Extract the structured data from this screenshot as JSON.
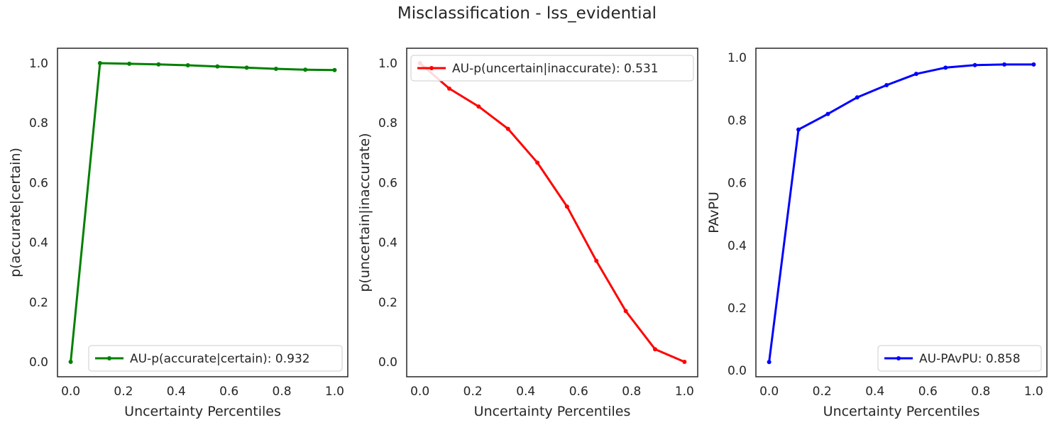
{
  "figure": {
    "title": "Misclassification - lss_evidential"
  },
  "chart_data": [
    {
      "type": "line",
      "title": "",
      "xlabel": "Uncertainty Percentiles",
      "ylabel": "p(accurate|certain)",
      "xlim": [
        -0.05,
        1.05
      ],
      "ylim": [
        -0.05,
        1.05
      ],
      "xticks": [
        0.0,
        0.2,
        0.4,
        0.6,
        0.8,
        1.0
      ],
      "yticks": [
        0.0,
        0.2,
        0.4,
        0.6,
        0.8,
        1.0
      ],
      "grid": false,
      "legend_position": "lower right",
      "series": [
        {
          "name": "AU-p(accurate|certain): 0.932",
          "color": "#008000",
          "x": [
            0.0,
            0.111,
            0.222,
            0.333,
            0.444,
            0.556,
            0.667,
            0.778,
            0.889,
            1.0
          ],
          "y": [
            0.0,
            1.0,
            0.998,
            0.996,
            0.993,
            0.989,
            0.985,
            0.981,
            0.978,
            0.977
          ]
        }
      ]
    },
    {
      "type": "line",
      "title": "",
      "xlabel": "Uncertainty Percentiles",
      "ylabel": "p(uncertain|inaccurate)",
      "xlim": [
        -0.05,
        1.05
      ],
      "ylim": [
        -0.05,
        1.05
      ],
      "xticks": [
        0.0,
        0.2,
        0.4,
        0.6,
        0.8,
        1.0
      ],
      "yticks": [
        0.0,
        0.2,
        0.4,
        0.6,
        0.8,
        1.0
      ],
      "grid": false,
      "legend_position": "upper left",
      "series": [
        {
          "name": "AU-p(uncertain|inaccurate): 0.531",
          "color": "#ff0000",
          "x": [
            0.0,
            0.111,
            0.222,
            0.333,
            0.444,
            0.556,
            0.667,
            0.778,
            0.889,
            1.0
          ],
          "y": [
            1.0,
            0.915,
            0.855,
            0.78,
            0.667,
            0.52,
            0.338,
            0.17,
            0.042,
            0.0
          ]
        }
      ]
    },
    {
      "type": "line",
      "title": "",
      "xlabel": "Uncertainty Percentiles",
      "ylabel": "PAvPU",
      "xlim": [
        -0.05,
        1.05
      ],
      "ylim": [
        -0.02,
        1.03
      ],
      "xticks": [
        0.0,
        0.2,
        0.4,
        0.6,
        0.8,
        1.0
      ],
      "yticks": [
        0.0,
        0.2,
        0.4,
        0.6,
        0.8,
        1.0
      ],
      "grid": false,
      "legend_position": "lower right",
      "series": [
        {
          "name": "AU-PAvPU: 0.858",
          "color": "#0000ff",
          "x": [
            0.0,
            0.111,
            0.222,
            0.333,
            0.444,
            0.556,
            0.667,
            0.778,
            0.889,
            1.0
          ],
          "y": [
            0.027,
            0.77,
            0.82,
            0.873,
            0.912,
            0.948,
            0.968,
            0.976,
            0.978,
            0.978
          ]
        }
      ]
    }
  ]
}
